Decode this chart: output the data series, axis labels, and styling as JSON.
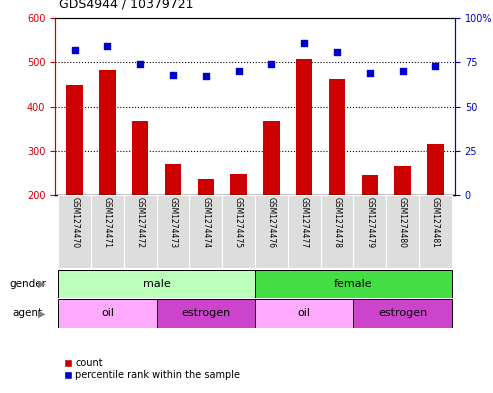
{
  "title": "GDS4944 / 10379721",
  "samples": [
    "GSM1274470",
    "GSM1274471",
    "GSM1274472",
    "GSM1274473",
    "GSM1274474",
    "GSM1274475",
    "GSM1274476",
    "GSM1274477",
    "GSM1274478",
    "GSM1274479",
    "GSM1274480",
    "GSM1274481"
  ],
  "counts": [
    448,
    483,
    368,
    270,
    237,
    248,
    367,
    508,
    462,
    245,
    265,
    315
  ],
  "percentiles": [
    82,
    84,
    74,
    68,
    67,
    70,
    74,
    86,
    81,
    69,
    70,
    73
  ],
  "bar_color": "#cc0000",
  "dot_color": "#0000cc",
  "ymin": 200,
  "ymax": 600,
  "yticks": [
    200,
    300,
    400,
    500,
    600
  ],
  "y2min": 0,
  "y2max": 100,
  "y2ticks": [
    0,
    25,
    50,
    75,
    100
  ],
  "y2ticklabels": [
    "0",
    "25",
    "50",
    "75",
    "100%"
  ],
  "grid_lines": [
    300,
    400,
    500
  ],
  "color_male_light": "#bbffbb",
  "color_female_green": "#44dd44",
  "color_oil": "#ffaaff",
  "color_estrogen": "#cc44cc",
  "color_label_bg": "#dddddd",
  "label_fontsize": 7,
  "tick_fontsize": 7,
  "title_fontsize": 9,
  "bar_width": 0.5,
  "n_samples": 12
}
